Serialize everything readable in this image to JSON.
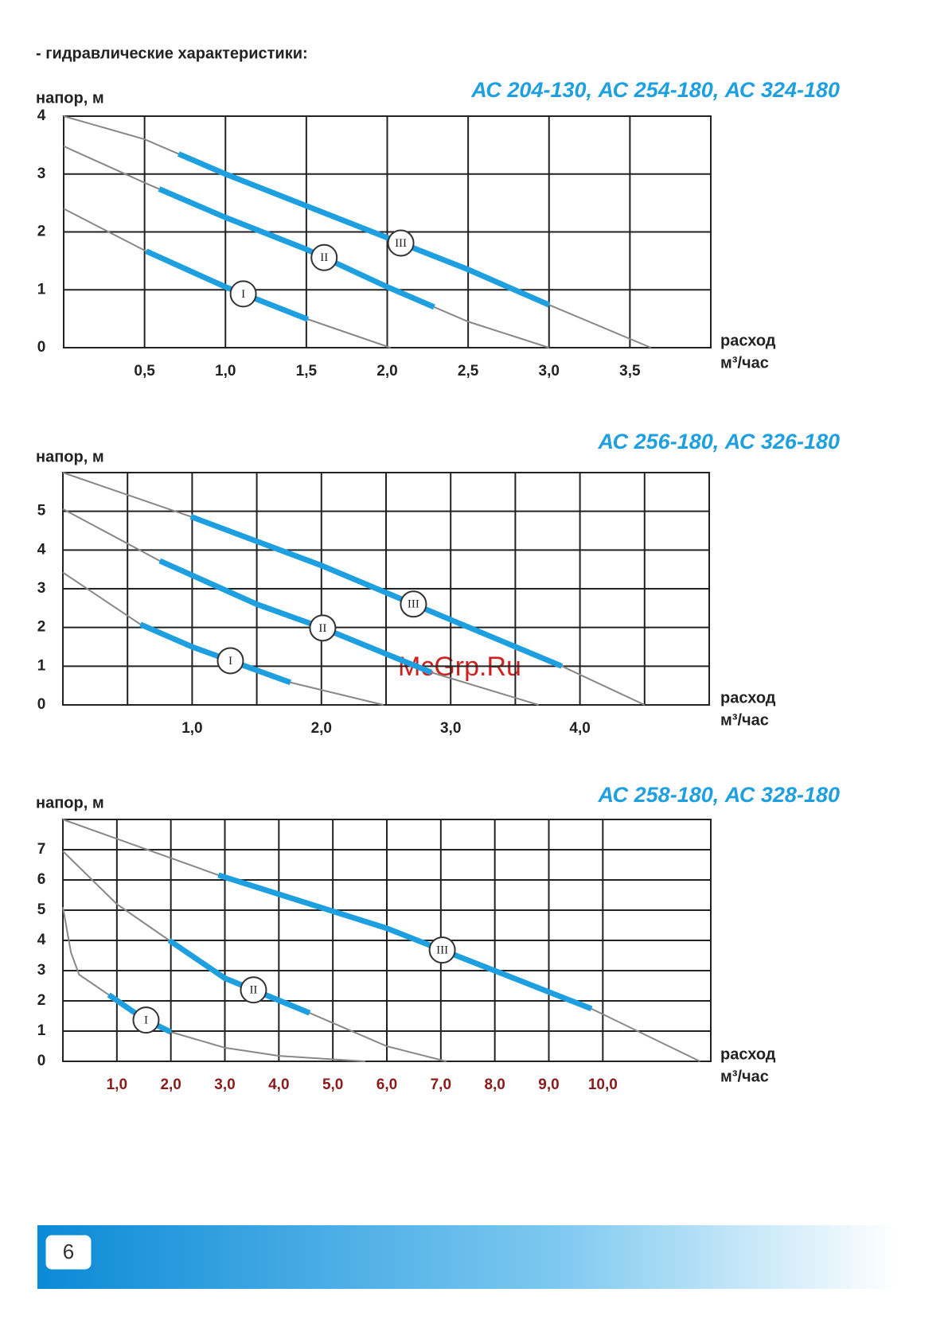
{
  "header": "- гидравлические характеристики:",
  "page_number": "6",
  "watermark": "McGrp.Ru",
  "chart_data": [
    {
      "type": "line",
      "title": "АС 204-130, АС 254-180, АС 324-180",
      "ylabel": "напор, м",
      "xlabel": [
        "расход",
        "м³/час"
      ],
      "xlim": [
        0,
        4
      ],
      "ylim": [
        0,
        4
      ],
      "xticks": [
        {
          "value": 0.5,
          "label": "0,5"
        },
        {
          "value": 1,
          "label": "1,0"
        },
        {
          "value": 1.5,
          "label": "1,5"
        },
        {
          "value": 2,
          "label": "2,0"
        },
        {
          "value": 2.5,
          "label": "2,5"
        },
        {
          "value": 3,
          "label": "3,0"
        },
        {
          "value": 3.5,
          "label": "3,5"
        }
      ],
      "yticks": [
        0,
        1,
        2,
        3,
        4
      ],
      "grid": true,
      "minor_grid": false,
      "tick_color": "#222222",
      "curve_color": "#888888",
      "range_color": "#1e9fe0",
      "series": [
        {
          "name": "I",
          "x": [
            0,
            0.5,
            1,
            1.5,
            2.02
          ],
          "values": [
            2.4,
            1.68,
            1.05,
            0.5,
            0
          ],
          "range": [
            0.51,
            1.51
          ]
        },
        {
          "name": "II",
          "x": [
            0,
            0.5,
            1,
            1.5,
            2,
            2.5,
            3
          ],
          "values": [
            3.48,
            2.85,
            2.25,
            1.7,
            1.05,
            0.45,
            0
          ],
          "range": [
            0.59,
            2.29
          ]
        },
        {
          "name": "III",
          "x": [
            0,
            0.5,
            1,
            1.5,
            2,
            2.5,
            3,
            3.63
          ],
          "values": [
            4,
            3.6,
            3.0,
            2.45,
            1.9,
            1.35,
            0.74,
            0
          ],
          "range": [
            0.71,
            3.0
          ]
        }
      ]
    },
    {
      "type": "line",
      "title": "АС 256-180, АС 326-180",
      "ylabel": "напор, м",
      "xlabel": [
        "расход",
        "м³/час"
      ],
      "xlim": [
        0,
        5
      ],
      "ylim": [
        0,
        6
      ],
      "xticks": [
        {
          "value": 1,
          "label": "1,0"
        },
        {
          "value": 2,
          "label": "2,0"
        },
        {
          "value": 3,
          "label": "3,0"
        },
        {
          "value": 4,
          "label": "4,0"
        }
      ],
      "yticks": [
        0,
        1,
        2,
        3,
        4,
        5
      ],
      "grid": true,
      "minor_grid": true,
      "tick_color": "#222222",
      "curve_color": "#888888",
      "range_color": "#1e9fe0",
      "series": [
        {
          "name": "I",
          "x": [
            0,
            0.6,
            1,
            1.76,
            2.48
          ],
          "values": [
            3.42,
            2.08,
            1.5,
            0.58,
            0
          ],
          "range": [
            0.6,
            1.76
          ]
        },
        {
          "name": "II",
          "x": [
            0,
            0.75,
            1.5,
            2,
            2.85,
            3.68
          ],
          "values": [
            5.06,
            3.72,
            2.6,
            2.0,
            0.84,
            0
          ],
          "range": [
            0.75,
            2.85
          ]
        },
        {
          "name": "III",
          "x": [
            0,
            1,
            2,
            3,
            3.86,
            4.5
          ],
          "values": [
            6,
            4.85,
            3.6,
            2.2,
            1.0,
            0
          ],
          "range": [
            0.99,
            3.86
          ]
        }
      ]
    },
    {
      "type": "line",
      "title": "АС 258-180, АС 328-180",
      "ylabel": "напор, м",
      "xlabel": [
        "расход",
        "м³/час"
      ],
      "xlim": [
        0,
        12
      ],
      "ylim": [
        0,
        8
      ],
      "xticks": [
        {
          "value": 1,
          "label": "1,0"
        },
        {
          "value": 2,
          "label": "2,0"
        },
        {
          "value": 3,
          "label": "3,0"
        },
        {
          "value": 4,
          "label": "4,0"
        },
        {
          "value": 5,
          "label": "5,0"
        },
        {
          "value": 6,
          "label": "6,0"
        },
        {
          "value": 7,
          "label": "7,0"
        },
        {
          "value": 8,
          "label": "8,0"
        },
        {
          "value": 9,
          "label": "9,0"
        },
        {
          "value": 10,
          "label": "10,0"
        }
      ],
      "yticks": [
        0,
        1,
        2,
        3,
        4,
        5,
        6,
        7
      ],
      "grid": true,
      "minor_grid": false,
      "tick_color": "#8b1a1a",
      "curve_color": "#888888",
      "range_color": "#1e9fe0",
      "series": [
        {
          "name": "I",
          "x": [
            0,
            0.15,
            0.3,
            0.85,
            1.5,
            2,
            3,
            4,
            5.6
          ],
          "values": [
            5.1,
            3.6,
            2.87,
            2.2,
            1.4,
            0.97,
            0.45,
            0.18,
            0
          ],
          "range": [
            0.85,
            2.0
          ]
        },
        {
          "name": "II",
          "x": [
            0,
            1,
            1.97,
            3,
            4.57,
            6,
            7.1
          ],
          "values": [
            6.95,
            5.2,
            4.0,
            2.75,
            1.6,
            0.5,
            0
          ],
          "range": [
            1.97,
            4.57
          ]
        },
        {
          "name": "III",
          "x": [
            0,
            2.88,
            6,
            9.79,
            11.8
          ],
          "values": [
            8,
            6.16,
            4.4,
            1.74,
            0
          ],
          "range": [
            2.88,
            9.79
          ]
        }
      ]
    }
  ]
}
